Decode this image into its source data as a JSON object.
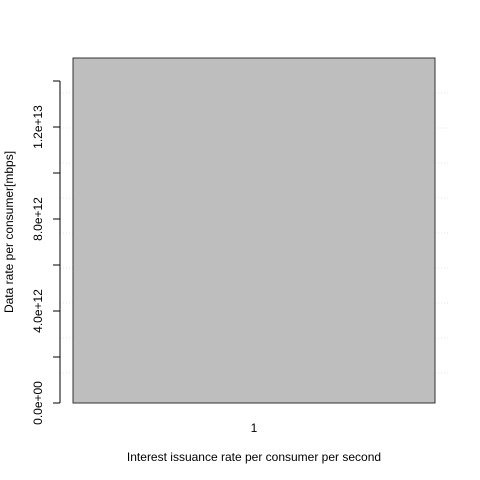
{
  "chart_data": {
    "type": "bar",
    "title": "",
    "xlabel": "Interest issuance rate per consumer per second",
    "ylabel": "Data rate per consumer[mbps]",
    "categories": [
      "1"
    ],
    "series": [
      {
        "values": [
          15000000000000
        ]
      }
    ],
    "ylim": [
      0,
      15000000000000
    ],
    "yticks": [
      0,
      2000000000000,
      4000000000000,
      6000000000000,
      8000000000000,
      10000000000000,
      12000000000000,
      14000000000000
    ],
    "ytick_labels": [
      "0.0e+00",
      "",
      "4.0e+12",
      "",
      "8.0e+12",
      "",
      "1.2e+13",
      ""
    ],
    "grid": true,
    "legend": "none",
    "colors": {
      "bar": "#bebebe",
      "bar_border": "#333333",
      "grid": "#e6e6e6",
      "axis": "#000000"
    }
  }
}
